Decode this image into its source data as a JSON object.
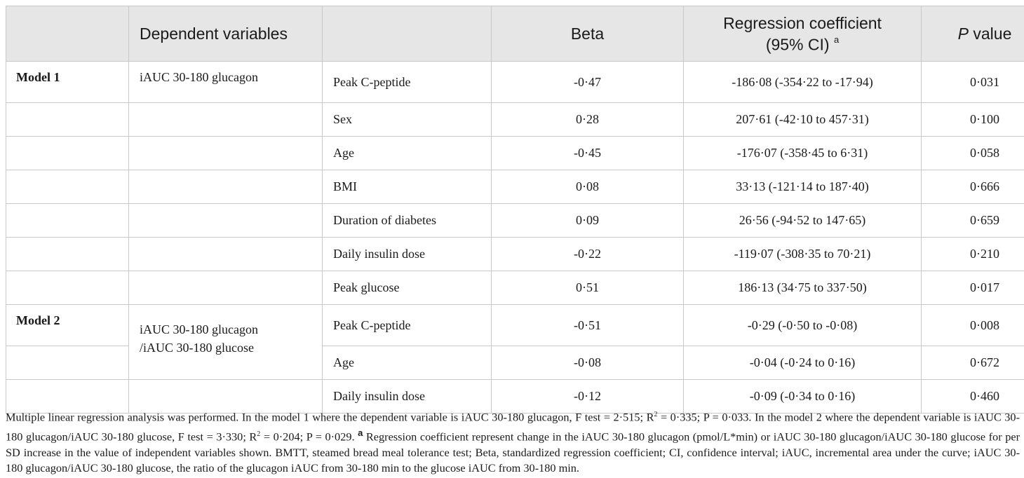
{
  "header": {
    "col_dependent": "Dependent variables",
    "col_beta": "Beta",
    "col_coef_line1": "Regression coefficient",
    "col_coef_line2": "(95% CI)",
    "col_coef_mark": "a",
    "col_p_italic": "P",
    "col_p_rest": " value"
  },
  "models": [
    {
      "label": "Model 1",
      "dependent_line1": "iAUC 30-180 glucagon",
      "dependent_line2": "",
      "rows": [
        {
          "variable": "Peak C-peptide",
          "beta": "-0·47",
          "coef": "-186·08 (-354·22 to -17·94)",
          "p": "0·031"
        },
        {
          "variable": "Sex",
          "beta": "0·28",
          "coef": "207·61 (-42·10 to 457·31)",
          "p": "0·100"
        },
        {
          "variable": "Age",
          "beta": "-0·45",
          "coef": "-176·07 (-358·45 to 6·31)",
          "p": "0·058"
        },
        {
          "variable": "BMI",
          "beta": "0·08",
          "coef": "33·13 (-121·14 to 187·40)",
          "p": "0·666"
        },
        {
          "variable": "Duration of diabetes",
          "beta": "0·09",
          "coef": "26·56 (-94·52 to 147·65)",
          "p": "0·659"
        },
        {
          "variable": "Daily insulin dose",
          "beta": "-0·22",
          "coef": "-119·07 (-308·35 to 70·21)",
          "p": "0·210"
        },
        {
          "variable": "Peak glucose",
          "beta": "0·51",
          "coef": "186·13 (34·75 to 337·50)",
          "p": "0·017"
        }
      ]
    },
    {
      "label": "Model 2",
      "dependent_line1": "iAUC 30-180 glucagon",
      "dependent_line2": "/iAUC 30-180 glucose",
      "rows": [
        {
          "variable": "Peak C-peptide",
          "beta": "-0·51",
          "coef": "-0·29 (-0·50 to -0·08)",
          "p": "0·008"
        },
        {
          "variable": "Age",
          "beta": "-0·08",
          "coef": "-0·04 (-0·24 to 0·16)",
          "p": "0·672"
        },
        {
          "variable": "Daily insulin dose",
          "beta": "-0·12",
          "coef": "-0·09 (-0·34 to 0·16)",
          "p": "0·460"
        }
      ]
    }
  ],
  "footnote": {
    "part1": "Multiple linear regression analysis was performed. In the model 1 where the dependent variable is iAUC 30-180 glucagon, F test = 2·515; R",
    "sup1": "2",
    "part2": " = 0·335; P = 0·033. In the model 2 where the dependent variable is iAUC 30-180 glucagon/iAUC 30-180 glucose, F test = 3·330; R",
    "sup2": "2",
    "part3": " = 0·204; P = 0·029. ",
    "mark": "a",
    "part4": " Regression coefficient represent change in the iAUC 30-180 glucagon (pmol/L*min) or iAUC 30-180 glucagon/iAUC 30-180 glucose for per SD increase in the value of independent variables shown. BMTT, steamed bread meal tolerance test; Beta, standardized regression coefficient; CI, confidence interval; iAUC, incremental area under the curve; iAUC 30-180 glucagon/iAUC 30-180 glucose, the ratio of the glucagon iAUC from 30-180 min to the glucose iAUC from 30-180 min."
  }
}
